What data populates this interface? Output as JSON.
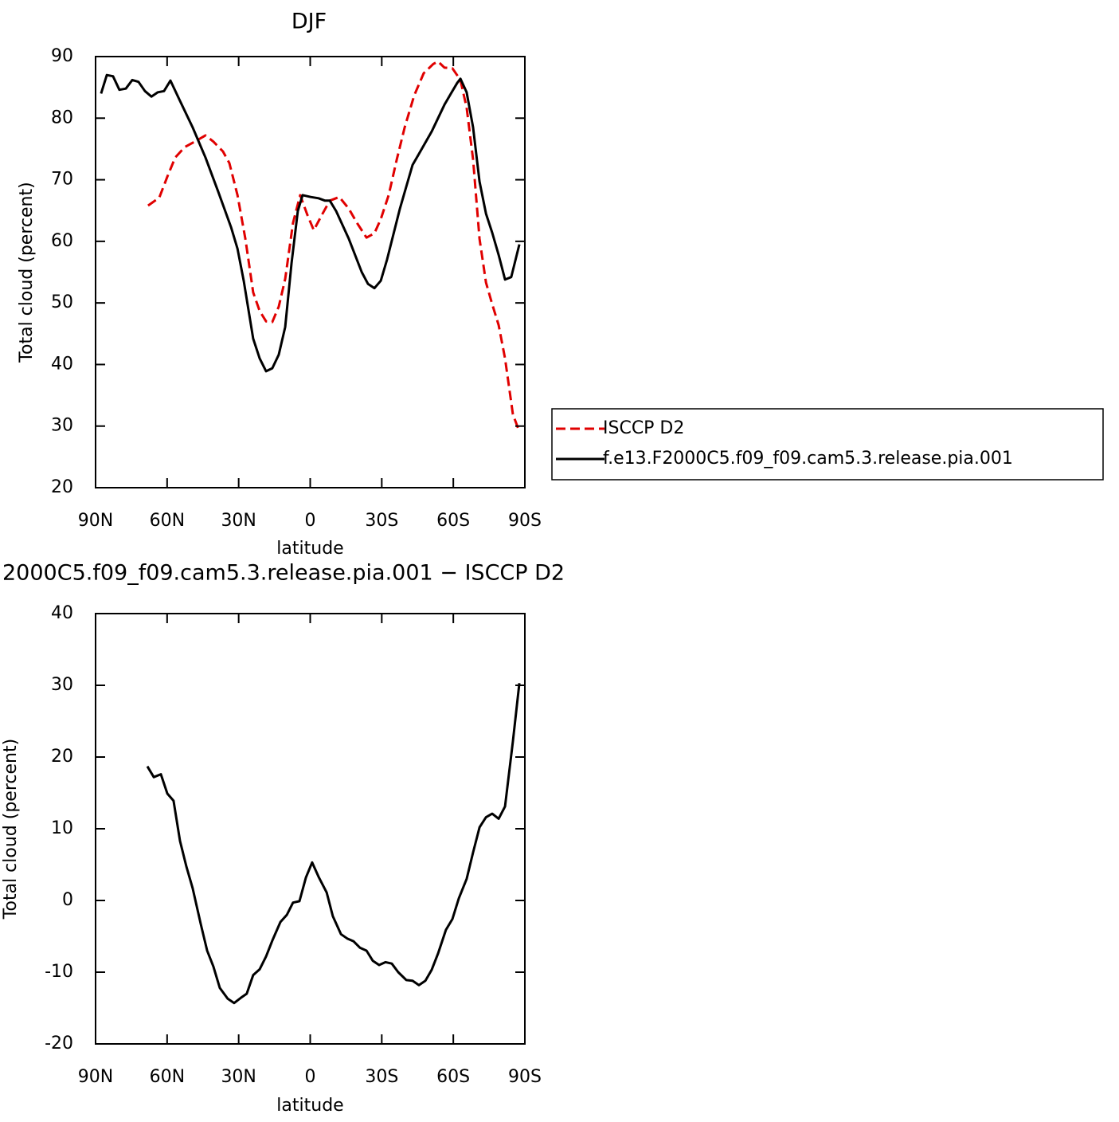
{
  "chart_data": [
    {
      "type": "line",
      "title": "DJF",
      "xlabel": "latitude",
      "ylabel": "Total cloud (percent)",
      "xlim": [
        90,
        -90
      ],
      "xticks": [
        {
          "value": 90,
          "label": "90N"
        },
        {
          "value": 60,
          "label": "60N"
        },
        {
          "value": 30,
          "label": "30N"
        },
        0,
        {
          "value": -30,
          "label": "30S"
        },
        {
          "value": -60,
          "label": "60S"
        },
        {
          "value": -90,
          "label": "90S"
        }
      ],
      "ylim": [
        20,
        90
      ],
      "yticks": [
        20,
        30,
        40,
        50,
        60,
        70,
        80,
        90
      ],
      "legend": "right",
      "series": [
        {
          "name": "ISCCP D2",
          "color": "#e00000",
          "line_style": "dashed",
          "x": [
            68,
            63.3,
            59.9,
            56.6,
            52.6,
            47.9,
            43.9,
            40.6,
            36.6,
            33.9,
            30.5,
            27.2,
            23.9,
            21.2,
            18.5,
            15.9,
            13.2,
            10.5,
            7.2,
            4.2,
            1.2,
            -1.5,
            -4.9,
            -8.2,
            -12.2,
            -16.2,
            -19.6,
            -23.6,
            -26.9,
            -29.6,
            -32.9,
            -36.3,
            -39.6,
            -43.6,
            -47.6,
            -51.6,
            -53.6,
            -56.3,
            -59.6,
            -63,
            -65.6,
            -68.3,
            -71,
            -73.7,
            -76.3,
            -79,
            -81.7,
            -85,
            -87.7
          ],
          "values": [
            65.8,
            67.1,
            70.5,
            73.6,
            75.3,
            76.3,
            77.2,
            76.2,
            74.6,
            72.7,
            67.5,
            60.4,
            51.7,
            48.7,
            47.0,
            46.9,
            49.4,
            53.9,
            63.0,
            67.5,
            64.3,
            61.8,
            64.3,
            66.6,
            67.2,
            65.3,
            63.0,
            60.6,
            61.3,
            63.6,
            67.5,
            73.3,
            78.5,
            83.7,
            87.3,
            88.8,
            89.2,
            88.2,
            88.1,
            86.2,
            81.7,
            73.3,
            60.4,
            53.3,
            49.8,
            46.4,
            41.0,
            31.9,
            29.1
          ]
        },
        {
          "name": "f.e13.F2000C5.f09_f09.cam5.3.release.pia.001",
          "color": "#000000",
          "line_style": "solid",
          "x": [
            87.7,
            85.3,
            82.7,
            80,
            77.3,
            74.6,
            72,
            69.3,
            66.6,
            63.9,
            61.3,
            58.6,
            54.6,
            49.3,
            43.9,
            38.6,
            33.2,
            30.5,
            27.9,
            23.9,
            21.2,
            18.5,
            15.9,
            13.2,
            10.5,
            7.8,
            5.2,
            3.2,
            -0.2,
            -3.5,
            -6.2,
            -8.2,
            -10.9,
            -16.2,
            -21.6,
            -24.2,
            -26.9,
            -29.6,
            -32.2,
            -37.6,
            -42.9,
            -45.6,
            -50.9,
            -56.3,
            -59,
            -61.6,
            -63,
            -65.6,
            -68.3,
            -71,
            -73.7,
            -76.3,
            -79,
            -81.7,
            -84.3,
            -87.7
          ],
          "values": [
            84.0,
            87.0,
            86.8,
            84.6,
            84.8,
            86.2,
            85.9,
            84.4,
            83.5,
            84.2,
            84.4,
            86.1,
            82.8,
            78.5,
            73.6,
            68.1,
            62.3,
            58.8,
            53.6,
            44.2,
            41.0,
            38.9,
            39.4,
            41.6,
            46.1,
            56.5,
            64.9,
            67.5,
            67.2,
            67.0,
            66.6,
            66.6,
            64.9,
            60.4,
            55.0,
            53.1,
            52.4,
            53.6,
            57.0,
            65.3,
            72.4,
            74.2,
            77.8,
            82.2,
            84.0,
            85.7,
            86.4,
            84.2,
            78.5,
            69.7,
            64.5,
            61.4,
            57.8,
            53.8,
            54.2,
            59.5
          ]
        }
      ]
    },
    {
      "type": "line",
      "title": "2000C5.f09_f09.cam5.3.release.pia.001 − ISCCP D2",
      "xlabel": "latitude",
      "ylabel": "Total cloud (percent)",
      "xlim": [
        90,
        -90
      ],
      "xticks": [
        {
          "value": 90,
          "label": "90N"
        },
        {
          "value": 60,
          "label": "60N"
        },
        {
          "value": 30,
          "label": "30N"
        },
        0,
        {
          "value": -30,
          "label": "30S"
        },
        {
          "value": -60,
          "label": "60S"
        },
        {
          "value": -90,
          "label": "90S"
        }
      ],
      "ylim": [
        -20,
        40
      ],
      "yticks": [
        -20,
        -10,
        0,
        10,
        20,
        30,
        40
      ],
      "series": [
        {
          "color": "#000000",
          "line_style": "solid",
          "x": [
            68.3,
            65.6,
            62.6,
            59.9,
            57.3,
            54.6,
            51.9,
            49.3,
            45.9,
            43.2,
            40.6,
            37.9,
            34.6,
            31.9,
            29.2,
            26.6,
            23.9,
            21.2,
            18.5,
            15.9,
            12.5,
            9.8,
            7.2,
            4.5,
            1.8,
            -0.8,
            -3.5,
            -6.9,
            -9.5,
            -12.9,
            -15.5,
            -18.2,
            -20.9,
            -23.6,
            -26.2,
            -28.9,
            -31.6,
            -34.2,
            -36.9,
            -40.3,
            -42.9,
            -45.6,
            -48.3,
            -50.9,
            -53.6,
            -56.9,
            -59.6,
            -62.3,
            -65.6,
            -68.3,
            -71,
            -73.7,
            -76.3,
            -79,
            -81.7,
            -85,
            -87.7
          ],
          "values": [
            18.7,
            17.2,
            17.6,
            14.9,
            13.9,
            8.3,
            4.7,
            1.7,
            -3.3,
            -7.0,
            -9.2,
            -12.2,
            -13.7,
            -14.3,
            -13.6,
            -13.0,
            -10.4,
            -9.6,
            -7.8,
            -5.6,
            -3.0,
            -2.0,
            -0.3,
            -0.1,
            3.2,
            5.3,
            3.3,
            1.1,
            -2.2,
            -4.7,
            -5.3,
            -5.7,
            -6.6,
            -7.0,
            -8.4,
            -9.0,
            -8.6,
            -8.8,
            -10.0,
            -11.1,
            -11.2,
            -11.8,
            -11.2,
            -9.7,
            -7.4,
            -4.1,
            -2.6,
            0.3,
            3.0,
            6.7,
            10.2,
            11.6,
            12.1,
            11.4,
            13.1,
            22.2,
            30.3
          ]
        }
      ]
    }
  ]
}
